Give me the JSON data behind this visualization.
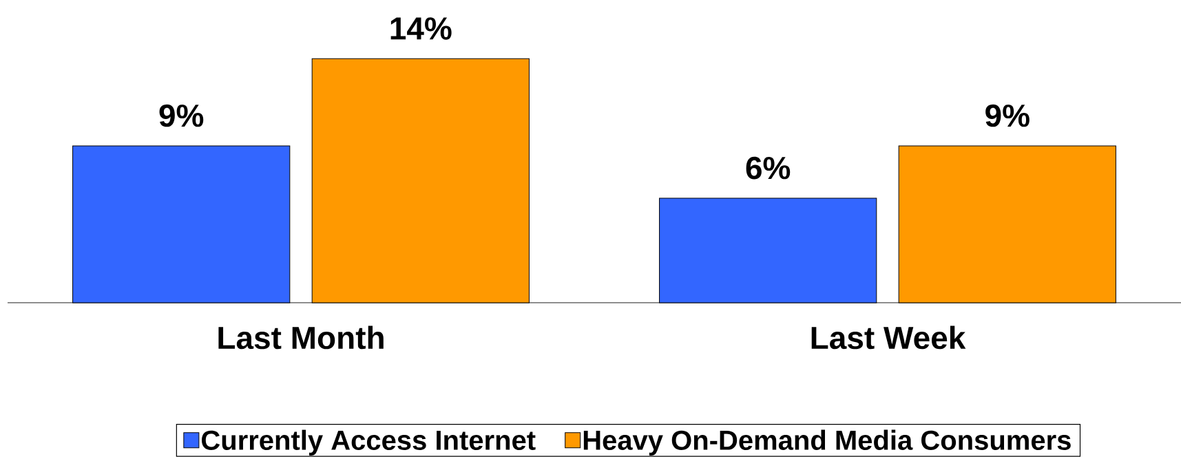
{
  "chart_data": {
    "type": "bar",
    "categories": [
      "Last Month",
      "Last Week"
    ],
    "series": [
      {
        "name": "Currently Access Internet",
        "color": "#3366ff",
        "values": [
          9,
          6
        ],
        "value_labels": [
          "9%",
          "6%"
        ]
      },
      {
        "name": "Heavy On-Demand Media Consumers",
        "color": "#ff9900",
        "values": [
          14,
          9
        ],
        "value_labels": [
          "14%",
          "9%"
        ]
      }
    ],
    "legend": "bottom"
  }
}
